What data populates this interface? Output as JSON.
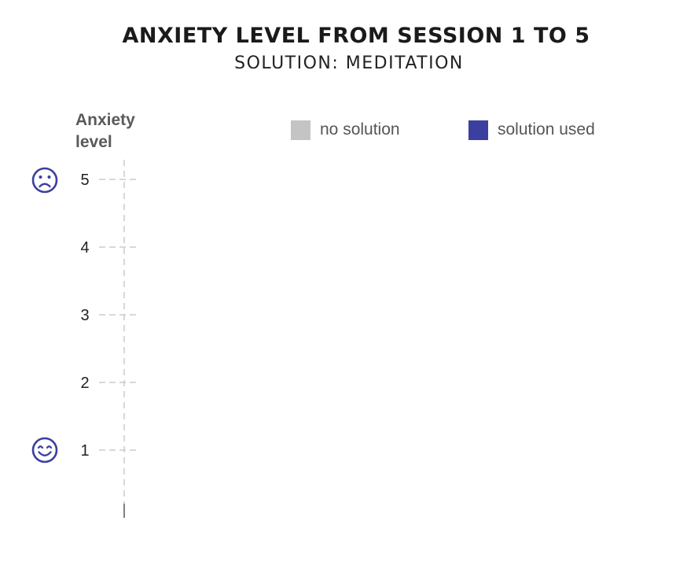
{
  "title": "ANXIETY LEVEL FROM SESSION 1 TO 5",
  "subtitle": "SOLUTION: MEDITATION",
  "colors": {
    "no_solution": "#c4c4c4",
    "solution_used": "#3b40a0",
    "axis": "#cccccc",
    "face": "#3b40a0"
  },
  "faces": {
    "top": "sad-face-icon",
    "bottom": "happy-face-icon"
  },
  "chart_data": {
    "type": "bar",
    "title": "ANXIETY LEVEL FROM SESSION 1 TO 5",
    "subtitle": "SOLUTION: MEDITATION",
    "ylabel": "Anxiety level",
    "xlabel": "",
    "ylim": [
      0,
      5
    ],
    "yticks": [
      "1",
      "2",
      "3",
      "4",
      "5"
    ],
    "categories": [],
    "series": [
      {
        "name": "no solution",
        "values": []
      },
      {
        "name": "solution used",
        "values": []
      }
    ],
    "legend_position": "top"
  }
}
